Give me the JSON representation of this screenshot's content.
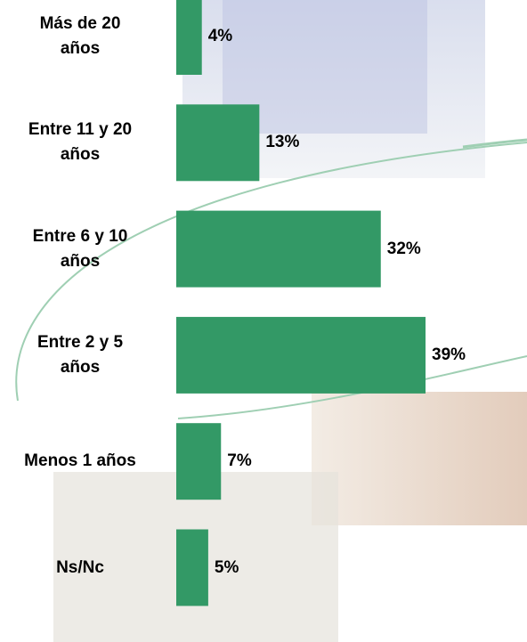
{
  "chart_data": {
    "type": "bar",
    "orientation": "horizontal",
    "categories": [
      "Más de 20\naños",
      "Entre 11 y 20\naños",
      "Entre 6 y 10\naños",
      "Entre 2 y 5\naños",
      "Menos 1 años",
      "Ns/Nc"
    ],
    "values": [
      4,
      13,
      32,
      39,
      7,
      5
    ],
    "value_labels": [
      "4%",
      "13%",
      "32%",
      "39%",
      "7%",
      "5%"
    ],
    "color": "#339966"
  }
}
